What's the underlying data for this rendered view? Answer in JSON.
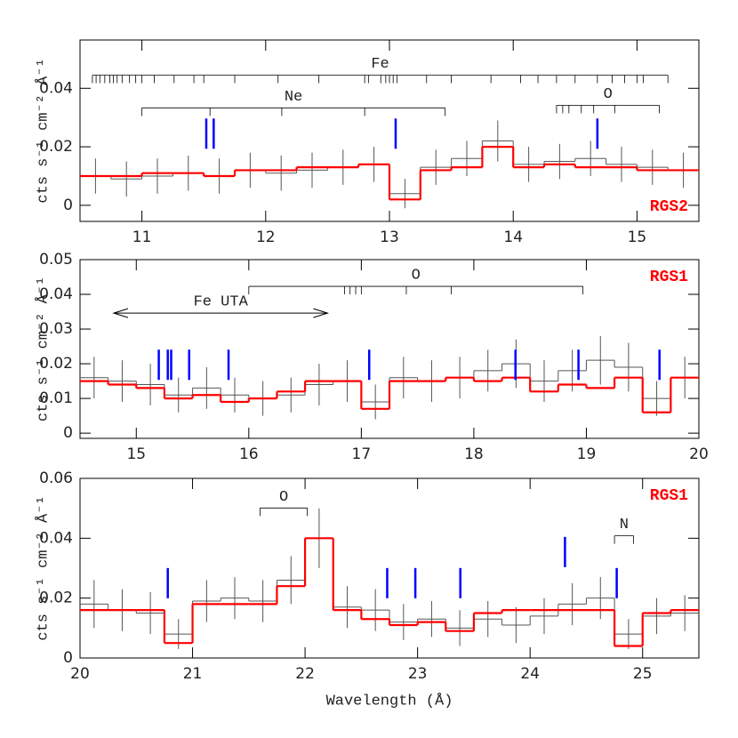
{
  "chart_data": [
    {
      "type": "histogram",
      "label": "RGS2",
      "label_color": "#ff0000",
      "label_corner": "lower right",
      "ylabel": "cts s⁻¹ cm⁻² Å⁻¹",
      "xlim": [
        10.5,
        15.5
      ],
      "xticks": [
        11,
        12,
        13,
        14,
        15
      ],
      "ylim": [
        -0.0055,
        0.0565
      ],
      "yticks": [
        0,
        0.02,
        0.04
      ],
      "bins": [
        10.5,
        10.75,
        11,
        11.25,
        11.5,
        11.75,
        12,
        12.25,
        12.5,
        12.75,
        13,
        13.25,
        13.5,
        13.75,
        14,
        14.25,
        14.5,
        14.75,
        15,
        15.25,
        15.5
      ],
      "series": [
        {
          "name": "data",
          "color": "#555555",
          "values": [
            0.01,
            0.009,
            0.01,
            0.011,
            0.01,
            0.012,
            0.011,
            0.012,
            0.013,
            0.014,
            0.004,
            0.013,
            0.016,
            0.022,
            0.014,
            0.015,
            0.016,
            0.014,
            0.013,
            0.012
          ],
          "errors": [
            0.006,
            0.006,
            0.006,
            0.006,
            0.006,
            0.006,
            0.006,
            0.006,
            0.006,
            0.006,
            0.005,
            0.006,
            0.006,
            0.007,
            0.006,
            0.006,
            0.006,
            0.006,
            0.006,
            0.006
          ]
        },
        {
          "name": "model",
          "color": "#ff0000",
          "values": [
            0.01,
            0.01,
            0.011,
            0.011,
            0.01,
            0.012,
            0.012,
            0.013,
            0.013,
            0.014,
            0.002,
            0.012,
            0.013,
            0.02,
            0.013,
            0.014,
            0.013,
            0.013,
            0.012,
            0.012
          ]
        }
      ],
      "markers": {
        "color": "#0000ff",
        "x": [
          11.52,
          11.58,
          13.05,
          14.68
        ],
        "y": [
          0.0245,
          0.0245,
          0.0245,
          0.0245
        ]
      },
      "annotations": [
        {
          "kind": "bracket",
          "label": "Fe",
          "x": [
            10.6,
            15.25
          ],
          "y": 0.0445,
          "ticks": [
            10.63,
            10.66,
            10.7,
            10.74,
            10.77,
            10.8,
            10.84,
            10.9,
            10.95,
            11.0,
            11.1,
            11.26,
            11.42,
            11.5,
            11.75,
            12.1,
            12.43,
            12.8,
            12.83,
            12.93,
            12.97,
            13.0,
            13.03,
            13.06,
            13.3,
            13.5,
            13.82,
            14.06,
            14.2,
            14.35,
            14.5,
            14.68,
            14.8,
            14.9,
            15.0,
            15.05
          ]
        },
        {
          "kind": "bracket",
          "label": "Ne",
          "x": [
            11.0,
            13.45
          ],
          "y": 0.0333,
          "ticks": [
            11.55,
            12.13,
            12.8
          ]
        },
        {
          "kind": "bracket",
          "label": "O",
          "x": [
            14.35,
            15.18
          ],
          "y": 0.0342,
          "ticks": [
            14.4,
            14.45,
            14.55,
            14.65,
            14.82
          ]
        }
      ]
    },
    {
      "type": "histogram",
      "label": "RGS1",
      "label_color": "#ff0000",
      "label_corner": "upper right",
      "ylabel": "cts s⁻¹ cm⁻² Å⁻¹",
      "xlim": [
        14.5,
        20
      ],
      "xticks": [
        15,
        16,
        17,
        18,
        19,
        20
      ],
      "ylim": [
        -0.0015,
        0.05
      ],
      "yticks": [
        0,
        0.01,
        0.02,
        0.03,
        0.04,
        0.05
      ],
      "bins": [
        14.5,
        14.75,
        15,
        15.25,
        15.5,
        15.75,
        16,
        16.25,
        16.5,
        16.75,
        17,
        17.25,
        17.5,
        17.75,
        18,
        18.25,
        18.5,
        18.75,
        19,
        19.25,
        19.5,
        19.75,
        20
      ],
      "series": [
        {
          "name": "data",
          "color": "#555555",
          "values": [
            0.016,
            0.015,
            0.014,
            0.011,
            0.013,
            0.011,
            0.01,
            0.011,
            0.014,
            0.015,
            0.009,
            0.016,
            0.015,
            0.016,
            0.018,
            0.02,
            0.015,
            0.018,
            0.021,
            0.019,
            0.01,
            0.016
          ],
          "errors": [
            0.006,
            0.006,
            0.006,
            0.005,
            0.006,
            0.005,
            0.005,
            0.005,
            0.006,
            0.006,
            0.005,
            0.006,
            0.006,
            0.006,
            0.006,
            0.007,
            0.006,
            0.006,
            0.007,
            0.007,
            0.005,
            0.006
          ]
        },
        {
          "name": "model",
          "color": "#ff0000",
          "values": [
            0.015,
            0.014,
            0.013,
            0.01,
            0.011,
            0.009,
            0.01,
            0.012,
            0.015,
            0.015,
            0.007,
            0.015,
            0.015,
            0.016,
            0.015,
            0.016,
            0.012,
            0.014,
            0.013,
            0.016,
            0.006,
            0.016
          ]
        }
      ],
      "markers": {
        "color": "#0000ff",
        "x": [
          15.2,
          15.28,
          15.31,
          15.47,
          15.82,
          17.07,
          18.37,
          18.93,
          19.65
        ],
        "y": [
          0.0197,
          0.0197,
          0.0197,
          0.0197,
          0.0197,
          0.0197,
          0.0197,
          0.0197,
          0.0197
        ]
      },
      "annotations": [
        {
          "kind": "bracket",
          "label": "O",
          "x": [
            16.0,
            18.97
          ],
          "y": 0.0423,
          "ticks": [
            16.85,
            16.9,
            16.95,
            17.0,
            17.4,
            17.8
          ]
        },
        {
          "kind": "arrow",
          "label": "Fe UTA",
          "x": [
            14.8,
            16.7
          ],
          "y": 0.0346
        }
      ]
    },
    {
      "type": "histogram",
      "label": "RGS1",
      "label_color": "#ff0000",
      "label_corner": "upper right",
      "ylabel": "cts s⁻¹ cm⁻² Å⁻¹",
      "xlabel": "Wavelength (Å)",
      "xlim": [
        20,
        25.5
      ],
      "xticks": [
        20,
        21,
        22,
        23,
        24,
        25
      ],
      "ylim": [
        0,
        0.06
      ],
      "yticks": [
        0,
        0.02,
        0.04,
        0.06
      ],
      "bins": [
        20,
        20.25,
        20.5,
        20.75,
        21,
        21.25,
        21.5,
        21.75,
        22,
        22.25,
        22.5,
        22.75,
        23,
        23.25,
        23.5,
        23.75,
        24,
        24.25,
        24.5,
        24.75,
        25,
        25.25,
        25.5
      ],
      "series": [
        {
          "name": "data",
          "color": "#555555",
          "values": [
            0.018,
            0.016,
            0.015,
            0.008,
            0.019,
            0.02,
            0.019,
            0.026,
            0.04,
            0.017,
            0.016,
            0.012,
            0.013,
            0.01,
            0.013,
            0.011,
            0.014,
            0.018,
            0.02,
            0.008,
            0.014,
            0.015
          ],
          "errors": [
            0.008,
            0.007,
            0.007,
            0.005,
            0.007,
            0.007,
            0.007,
            0.008,
            0.01,
            0.007,
            0.007,
            0.006,
            0.006,
            0.006,
            0.006,
            0.006,
            0.006,
            0.007,
            0.007,
            0.005,
            0.006,
            0.006
          ]
        },
        {
          "name": "model",
          "color": "#ff0000",
          "values": [
            0.016,
            0.016,
            0.016,
            0.005,
            0.018,
            0.018,
            0.018,
            0.024,
            0.04,
            0.016,
            0.013,
            0.011,
            0.012,
            0.009,
            0.015,
            0.016,
            0.016,
            0.016,
            0.016,
            0.004,
            0.015,
            0.016
          ]
        }
      ],
      "markers": {
        "color": "#0000ff",
        "x": [
          20.78,
          22.73,
          22.98,
          23.38,
          24.31,
          24.77
        ],
        "y": [
          0.025,
          0.025,
          0.025,
          0.025,
          0.0354,
          0.025
        ]
      },
      "annotations": [
        {
          "kind": "bracket",
          "label": "O",
          "x": [
            21.6,
            22.02
          ],
          "y": 0.0501,
          "ticks": []
        },
        {
          "kind": "bracket",
          "label": "N",
          "x": [
            24.75,
            24.92
          ],
          "y": 0.0408,
          "ticks": []
        }
      ]
    }
  ]
}
